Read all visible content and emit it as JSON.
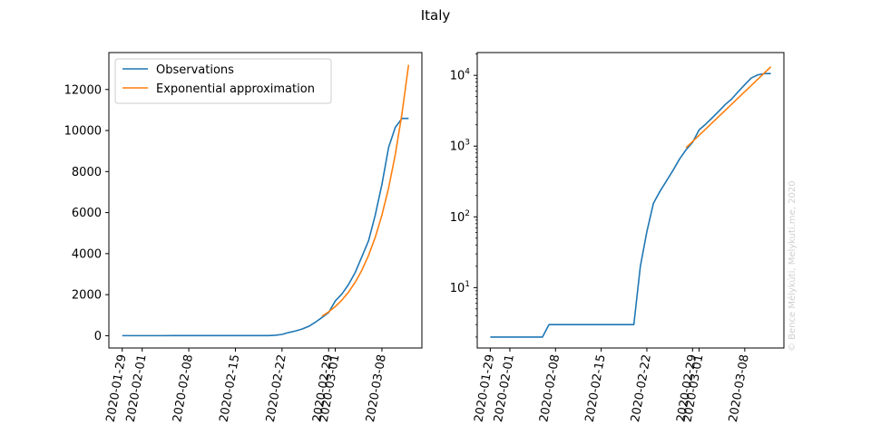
{
  "figure_title": "Italy",
  "watermark": "© Bence Mélykúti, Melykuti.me, 2020",
  "colors": {
    "observations": "#1f77b4",
    "approximation": "#ff7f0e"
  },
  "legend": {
    "placement": "upper-left",
    "entries": [
      "Observations",
      "Exponential approximation"
    ]
  },
  "chart_data": [
    {
      "type": "line",
      "title": "",
      "xlabel": "",
      "ylabel": "",
      "y_scale": "linear",
      "xlim": [
        "2020-01-27",
        "2020-03-14"
      ],
      "ylim": [
        -600,
        13800
      ],
      "x_ticks": [
        "2020-01-29",
        "2020-02-01",
        "2020-02-08",
        "2020-02-15",
        "2020-02-22",
        "2020-02-29",
        "2020-03-01",
        "2020-03-08"
      ],
      "y_ticks": [
        0,
        2000,
        4000,
        6000,
        8000,
        10000,
        12000
      ],
      "y_tick_labels": [
        "0",
        "2000",
        "4000",
        "6000",
        "8000",
        "10000",
        "12000"
      ],
      "grid": false,
      "series": [
        {
          "name": "Observations",
          "color": "#1f77b4",
          "x": [
            "2020-01-29",
            "2020-01-31",
            "2020-02-02",
            "2020-02-04",
            "2020-02-06",
            "2020-02-08",
            "2020-02-10",
            "2020-02-12",
            "2020-02-14",
            "2020-02-16",
            "2020-02-18",
            "2020-02-20",
            "2020-02-21",
            "2020-02-22",
            "2020-02-23",
            "2020-02-24",
            "2020-02-25",
            "2020-02-26",
            "2020-02-27",
            "2020-02-28",
            "2020-02-29",
            "2020-03-01",
            "2020-03-02",
            "2020-03-03",
            "2020-03-04",
            "2020-03-05",
            "2020-03-06",
            "2020-03-07",
            "2020-03-08",
            "2020-03-09",
            "2020-03-10",
            "2020-03-11",
            "2020-03-12"
          ],
          "values": [
            2,
            2,
            2,
            2,
            3,
            3,
            3,
            3,
            3,
            3,
            3,
            3,
            20,
            62,
            155,
            229,
            322,
            453,
            655,
            888,
            1128,
            1694,
            2036,
            2502,
            3089,
            3858,
            4636,
            5883,
            7375,
            9172,
            10149,
            10590,
            10590
          ]
        },
        {
          "name": "Exponential approximation",
          "color": "#ff7f0e",
          "x": [
            "2020-02-28",
            "2020-02-29",
            "2020-03-01",
            "2020-03-02",
            "2020-03-03",
            "2020-03-04",
            "2020-03-05",
            "2020-03-06",
            "2020-03-07",
            "2020-03-08",
            "2020-03-09",
            "2020-03-10",
            "2020-03-11",
            "2020-03-12"
          ],
          "values": [
            950,
            1160,
            1420,
            1740,
            2130,
            2610,
            3200,
            3920,
            4800,
            5880,
            7200,
            8820,
            10800,
            13200
          ]
        }
      ]
    },
    {
      "type": "line",
      "title": "",
      "xlabel": "",
      "ylabel": "",
      "y_scale": "log",
      "xlim": [
        "2020-01-27",
        "2020-03-14"
      ],
      "ylim": [
        1.4,
        21000
      ],
      "x_ticks": [
        "2020-01-29",
        "2020-02-01",
        "2020-02-08",
        "2020-02-15",
        "2020-02-22",
        "2020-02-29",
        "2020-03-01",
        "2020-03-08"
      ],
      "y_ticks": [
        10,
        100,
        1000,
        10000
      ],
      "y_tick_bases": [
        "10",
        "10",
        "10",
        "10"
      ],
      "y_tick_exponents": [
        "1",
        "2",
        "3",
        "4"
      ],
      "grid": false,
      "series": [
        {
          "color": "#1f77b4",
          "x": [
            "2020-01-29",
            "2020-01-31",
            "2020-02-02",
            "2020-02-04",
            "2020-02-06",
            "2020-02-07",
            "2020-02-08",
            "2020-02-10",
            "2020-02-12",
            "2020-02-14",
            "2020-02-16",
            "2020-02-18",
            "2020-02-20",
            "2020-02-21",
            "2020-02-22",
            "2020-02-23",
            "2020-02-24",
            "2020-02-25",
            "2020-02-26",
            "2020-02-27",
            "2020-02-28",
            "2020-02-29",
            "2020-03-01",
            "2020-03-02",
            "2020-03-03",
            "2020-03-04",
            "2020-03-05",
            "2020-03-06",
            "2020-03-07",
            "2020-03-08",
            "2020-03-09",
            "2020-03-10",
            "2020-03-11",
            "2020-03-12"
          ],
          "values": [
            2,
            2,
            2,
            2,
            2,
            3,
            3,
            3,
            3,
            3,
            3,
            3,
            3,
            20,
            62,
            155,
            229,
            322,
            453,
            655,
            888,
            1128,
            1694,
            2036,
            2502,
            3089,
            3858,
            4636,
            5883,
            7375,
            9172,
            10149,
            10590,
            10590
          ]
        },
        {
          "color": "#ff7f0e",
          "x": [
            "2020-02-28",
            "2020-02-29",
            "2020-03-01",
            "2020-03-02",
            "2020-03-03",
            "2020-03-04",
            "2020-03-05",
            "2020-03-06",
            "2020-03-07",
            "2020-03-08",
            "2020-03-09",
            "2020-03-10",
            "2020-03-11",
            "2020-03-12"
          ],
          "values": [
            950,
            1160,
            1420,
            1740,
            2130,
            2610,
            3200,
            3920,
            4800,
            5880,
            7200,
            8820,
            10800,
            13200
          ]
        }
      ]
    }
  ]
}
